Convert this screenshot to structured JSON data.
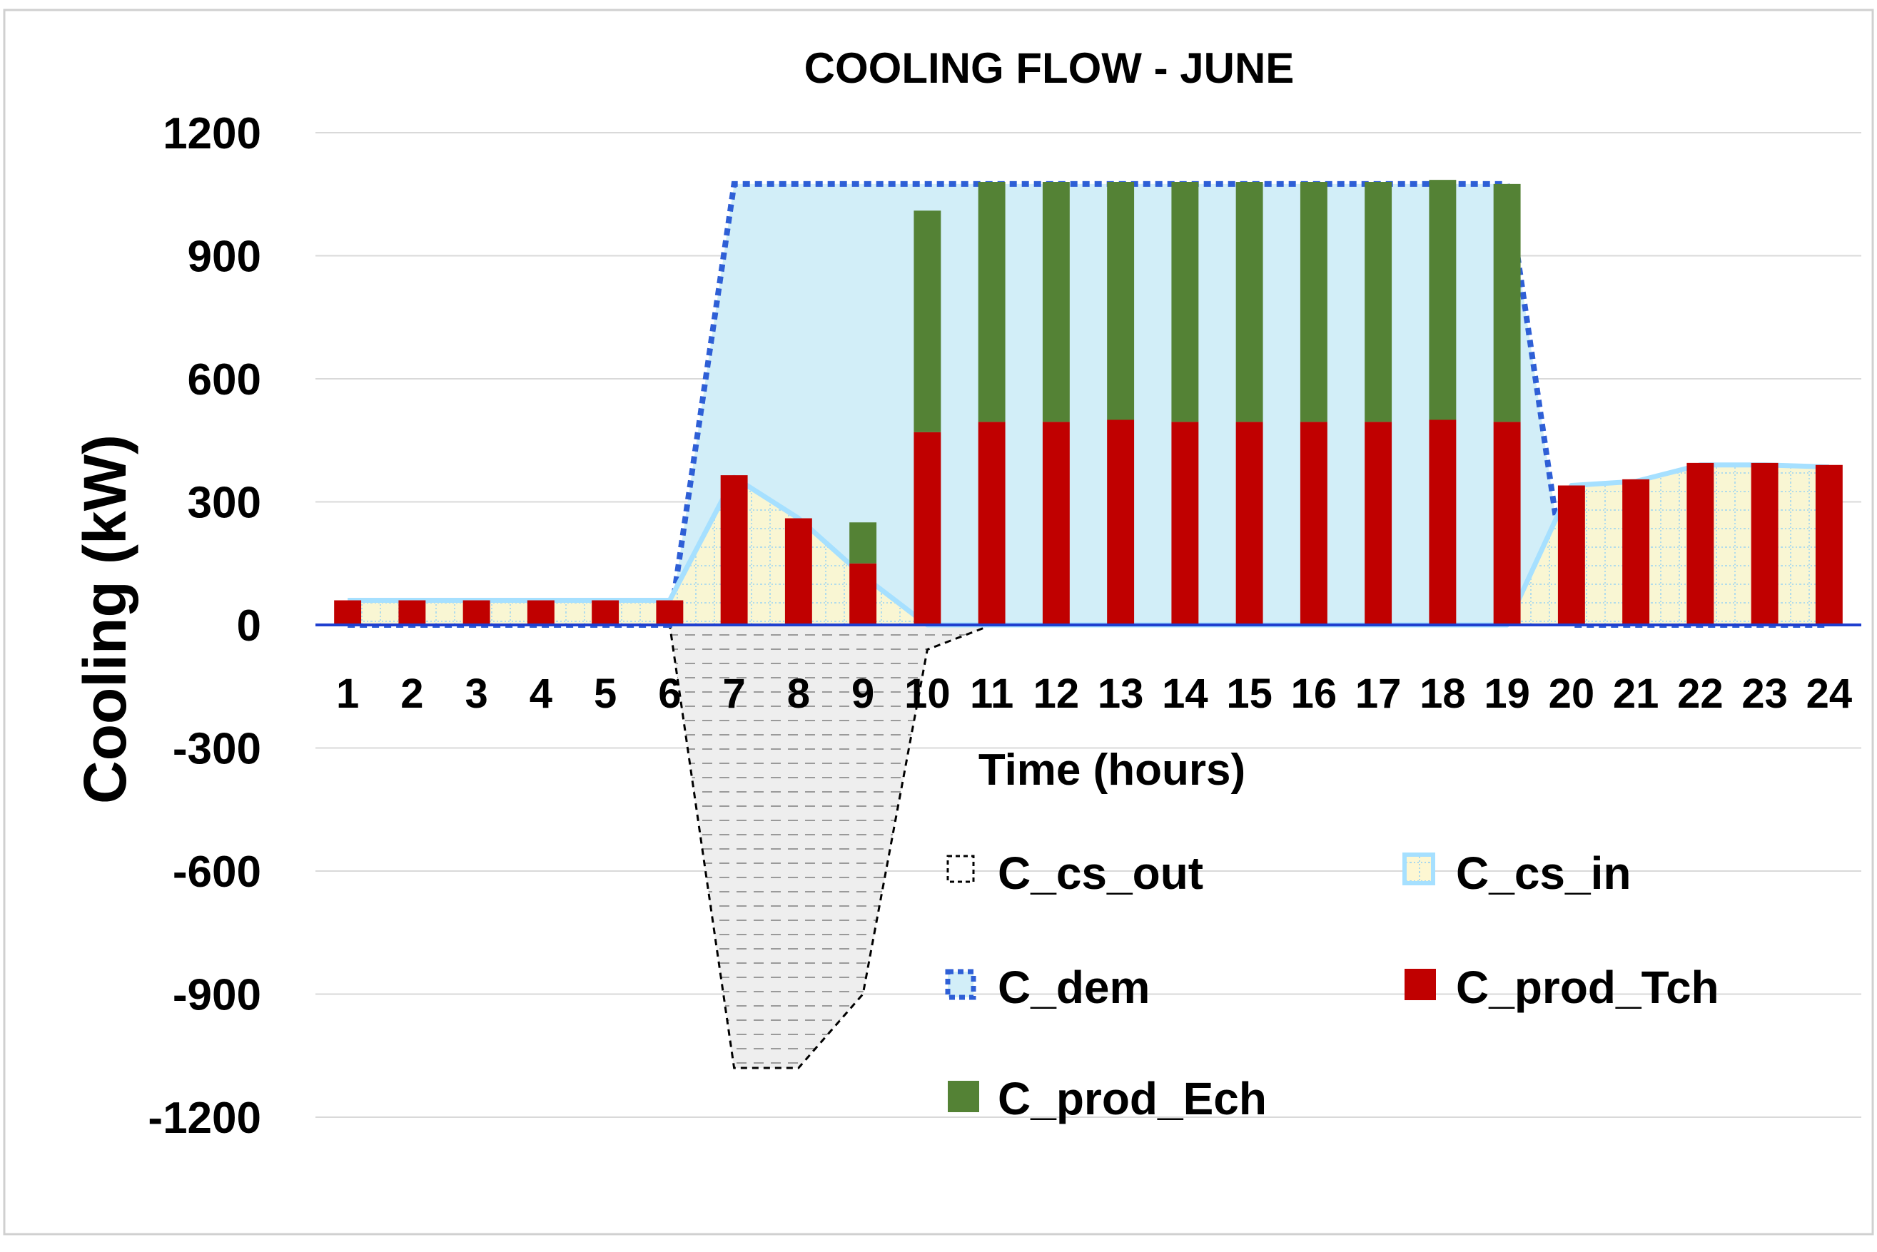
{
  "chart_data": {
    "type": "bar",
    "title": "COOLING FLOW - JUNE",
    "xlabel": "Time (hours)",
    "ylabel": "Cooling (kW)",
    "ylim": [
      -1200,
      1200
    ],
    "yticks": [
      1200,
      900,
      600,
      300,
      0,
      -300,
      -600,
      -900,
      -1200
    ],
    "ytick_labels": [
      "1200",
      "900",
      "600",
      "300",
      "0",
      "-300",
      "-600",
      "-900",
      "-1200"
    ],
    "categories": [
      "1",
      "2",
      "3",
      "4",
      "5",
      "6",
      "7",
      "8",
      "9",
      "10",
      "11",
      "12",
      "13",
      "14",
      "15",
      "16",
      "17",
      "18",
      "19",
      "20",
      "21",
      "22",
      "23",
      "24"
    ],
    "grid": true,
    "legend_position": "bottom-right inside plot",
    "series": [
      {
        "name": "C_cs_out",
        "kind": "area",
        "values": [
          0,
          0,
          0,
          0,
          0,
          0,
          -1080,
          -1080,
          -900,
          -60,
          0,
          0,
          0,
          0,
          0,
          0,
          0,
          0,
          0,
          0,
          0,
          0,
          0,
          0
        ]
      },
      {
        "name": "C_cs_in",
        "kind": "area",
        "values": [
          60,
          60,
          60,
          60,
          60,
          60,
          360,
          260,
          120,
          0,
          0,
          0,
          0,
          0,
          0,
          0,
          0,
          0,
          0,
          340,
          350,
          390,
          390,
          385
        ]
      },
      {
        "name": "C_dem",
        "kind": "area",
        "values": [
          0,
          0,
          0,
          0,
          0,
          0,
          1075,
          1075,
          1075,
          1075,
          1075,
          1075,
          1075,
          1075,
          1075,
          1075,
          1075,
          1075,
          1075,
          0,
          0,
          0,
          0,
          0
        ]
      },
      {
        "name": "C_prod_Tch",
        "kind": "stacked-bar",
        "values": [
          60,
          60,
          60,
          60,
          60,
          60,
          365,
          260,
          150,
          470,
          495,
          495,
          500,
          495,
          495,
          495,
          495,
          500,
          495,
          340,
          355,
          395,
          395,
          390
        ]
      },
      {
        "name": "C_prod_Ech",
        "kind": "stacked-bar",
        "values": [
          0,
          0,
          0,
          0,
          0,
          0,
          0,
          0,
          100,
          540,
          585,
          585,
          580,
          585,
          585,
          585,
          585,
          585,
          580,
          0,
          0,
          0,
          0,
          0
        ]
      }
    ],
    "colors": {
      "C_cs_out_fill": "#eaeaea",
      "C_cs_out_stroke": "#000000",
      "C_cs_in_fill": "#dff0d8",
      "C_cs_in_pattern": "#fff9d6",
      "C_cs_in_stroke": "#a6e0ff",
      "C_dem_fill": "#d2eef8",
      "C_dem_stroke": "#2e5fd6",
      "C_prod_Tch": "#c00000",
      "C_prod_Ech": "#548235",
      "grid": "#d9d9d9",
      "axis": "#1f3fcf"
    }
  }
}
